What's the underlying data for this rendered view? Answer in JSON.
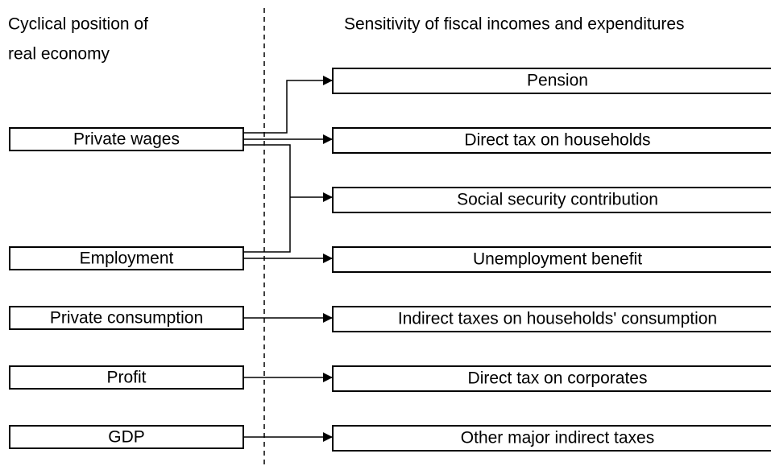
{
  "header": {
    "left_title": [
      "Cyclical position of",
      "real economy"
    ],
    "right_title": "Sensitivity of fiscal incomes and expenditures"
  },
  "left_nodes": [
    "Private wages",
    "Employment",
    "Private consumption",
    "Profit",
    "GDP"
  ],
  "right_nodes": [
    "Pension",
    "Direct tax on households",
    "Social security contribution",
    "Unemployment benefit",
    "Indirect taxes on households' consumption",
    "Direct tax on corporates",
    "Other major indirect taxes"
  ]
}
